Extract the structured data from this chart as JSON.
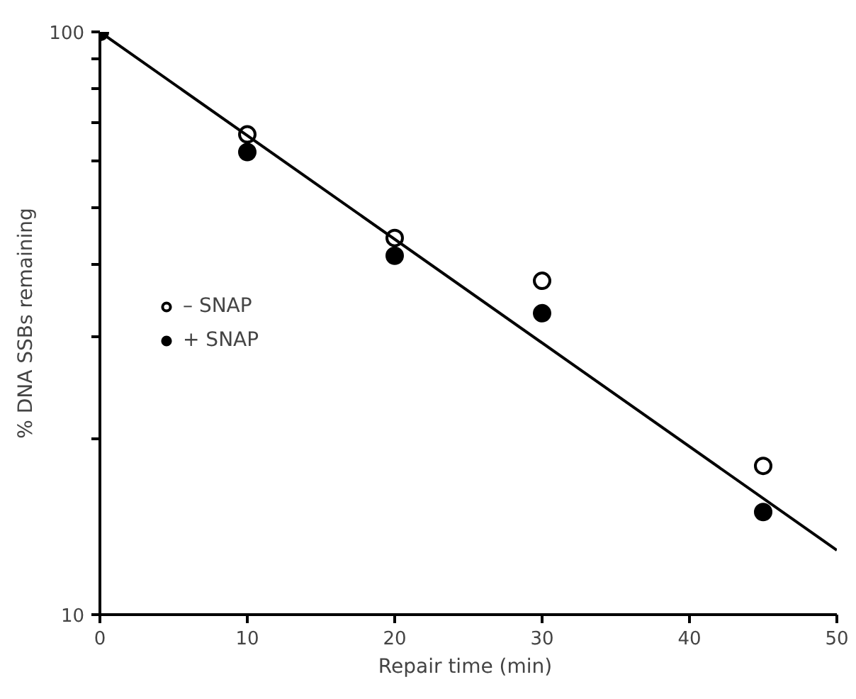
{
  "chart_data": {
    "type": "scatter",
    "xlabel": "Repair time  (min)",
    "ylabel": "% DNA SSBs remaining",
    "log": "y",
    "xlim": [
      0,
      50
    ],
    "ylim": [
      10,
      100
    ],
    "xticks": [
      0,
      10,
      20,
      30,
      40,
      50
    ],
    "yticks": [
      10,
      {
        "value": 20,
        "label": null
      },
      {
        "value": 30,
        "label": null
      },
      {
        "value": 40,
        "label": null
      },
      {
        "value": 50,
        "label": null
      },
      {
        "value": 60,
        "label": null
      },
      {
        "value": 70,
        "label": null
      },
      {
        "value": 80,
        "label": null
      },
      {
        "value": 90,
        "label": null
      },
      100
    ],
    "x": [
      0,
      10,
      20,
      30,
      45
    ],
    "marker": "circle",
    "legend": "left",
    "grid": false,
    "series": [
      {
        "name": "– SNAP",
        "color": "#ffffff",
        "values": [
          null,
          66.7,
          44.3,
          37.4,
          18.0
        ]
      },
      {
        "name": "+ SNAP",
        "color": "#000000",
        "values": [
          100,
          62.2,
          41.3,
          32.9,
          15.0
        ]
      },
      {
        "type": "line",
        "marker": "none",
        "color": "#000000",
        "x": [
          0,
          50
        ],
        "values": [
          100,
          12.9
        ]
      }
    ]
  }
}
